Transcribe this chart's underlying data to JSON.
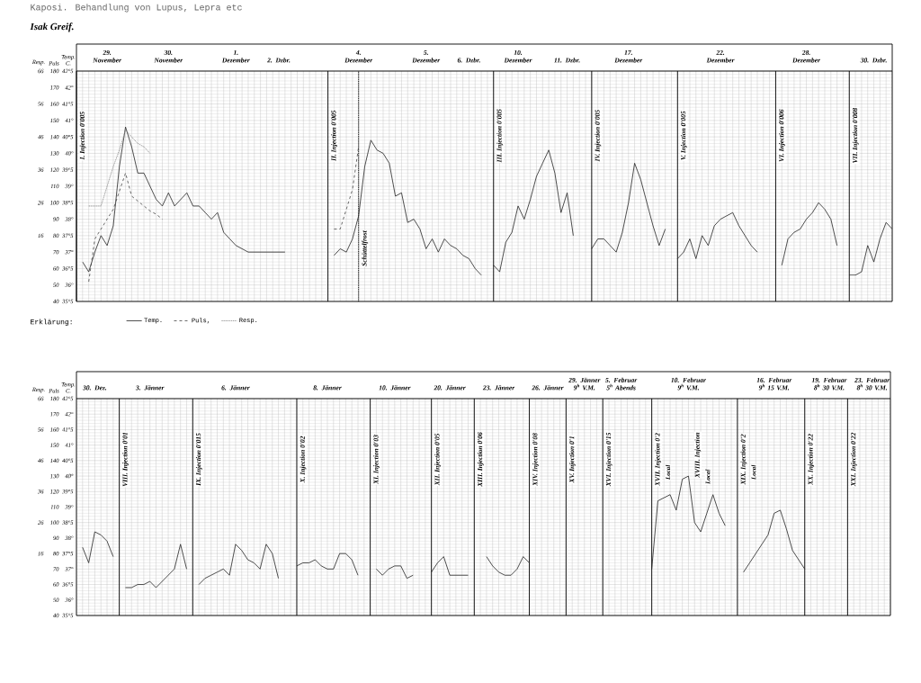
{
  "chart_data": [
    {
      "type": "line",
      "title": "Kaposi. Behandlung von Lupus, Lepra etc",
      "subtitle": "Isak Greif.",
      "ylabel": "Temp. C.",
      "y2label": "Puls",
      "y3label": "Resp.",
      "legend_title": "Erklärung:",
      "legend": "bottom left",
      "grid": true,
      "categories": [
        null,
        null,
        null,
        null,
        null,
        "29. November",
        null,
        null,
        null,
        null,
        null,
        null,
        null,
        null,
        null,
        "30. November",
        null,
        null,
        null,
        null,
        null,
        null,
        null,
        null,
        null,
        null,
        "1. Dezember",
        null,
        null,
        null,
        null,
        null,
        null,
        "2. Dzbr.",
        null,
        null,
        null,
        null,
        null,
        null,
        null,
        null,
        null,
        null,
        null,
        null,
        "4. Dezember",
        null,
        null,
        null,
        null,
        null,
        null,
        null,
        null,
        null,
        null,
        "5. Dezember",
        null,
        null,
        null,
        null,
        null,
        null,
        "6. Dzbr.",
        null,
        null,
        null,
        null,
        null,
        null,
        null,
        "10. Dezember",
        null,
        null,
        null,
        null,
        null,
        null,
        null,
        "11. Dzbr.",
        null,
        null,
        null,
        null,
        null,
        null,
        null,
        null,
        null,
        "17. Dezember",
        null,
        null,
        null,
        null,
        null,
        null,
        null,
        null,
        null,
        null,
        null,
        null,
        null,
        null,
        "22. Dezember",
        null,
        null,
        null,
        null,
        null,
        null,
        null,
        null,
        null,
        null,
        null,
        null,
        null,
        "28. Dezember",
        null,
        null,
        null,
        null,
        null,
        null,
        null,
        null,
        null,
        null,
        "30. Dzbr.",
        null,
        null,
        null
      ],
      "ylim": [
        35.5,
        42.5
      ],
      "yticks": [
        {
          "value": 35.5,
          "label": "35°5"
        },
        {
          "value": 36,
          "label": "36°"
        },
        {
          "value": 36.5,
          "label": "36°5"
        },
        {
          "value": 37,
          "label": "37°"
        },
        {
          "value": 37.5,
          "label": "37°5"
        },
        {
          "value": 38,
          "label": "38°"
        },
        {
          "value": 38.5,
          "label": "38°5"
        },
        {
          "value": 39,
          "label": "39°"
        },
        {
          "value": 39.5,
          "label": "39°5"
        },
        {
          "value": 40,
          "label": "40°"
        },
        {
          "value": 40.5,
          "label": "40°5"
        },
        {
          "value": 41,
          "label": "41°"
        },
        {
          "value": 41.5,
          "label": "41°5"
        },
        {
          "value": 42,
          "label": "42°"
        },
        {
          "value": 42.5,
          "label": "42°5"
        }
      ],
      "y2lim": [
        40,
        180
      ],
      "y2ticks": [
        40,
        50,
        60,
        70,
        80,
        90,
        100,
        110,
        120,
        130,
        140,
        150,
        160,
        170,
        180
      ],
      "y3lim": [
        -4,
        66
      ],
      "y3ticks": [
        16,
        26,
        36,
        46,
        56,
        66
      ],
      "annotations": [
        "I. Injection 0'005",
        "II. Injection 0'005",
        "Schüttelfrost",
        "III. Injection 0'005",
        "IV. Injection 0'005",
        "V. Injection 0'005",
        "VI. Injection 0'006",
        "VII. Injection 0'008"
      ],
      "series": [
        {
          "name": "Temp.",
          "color": "#222222",
          "line_style": "solid",
          "values": [
            null,
            36.7,
            36.4,
            37.0,
            37.5,
            37.2,
            37.8,
            39.6,
            40.8,
            40.2,
            39.4,
            39.4,
            39.0,
            38.6,
            38.4,
            38.8,
            38.4,
            38.6,
            38.8,
            38.4,
            38.4,
            38.2,
            38.0,
            38.2,
            37.6,
            37.4,
            37.2,
            37.1,
            37.0,
            37.0,
            37.0,
            37.0,
            37.0,
            37.0,
            37.0,
            null,
            null,
            null,
            null,
            null,
            null,
            null,
            36.9,
            37.1,
            37.0,
            37.4,
            38.1,
            39.6,
            40.4,
            40.1,
            40.0,
            39.7,
            38.7,
            38.8,
            37.9,
            38.0,
            37.7,
            37.1,
            37.4,
            37.0,
            37.4,
            37.2,
            37.1,
            36.9,
            36.8,
            36.5,
            36.3,
            null,
            36.6,
            36.4,
            37.3,
            37.6,
            38.4,
            38.0,
            38.6,
            39.3,
            39.7,
            40.1,
            39.4,
            38.2,
            38.8,
            37.5,
            null,
            null,
            37.1,
            37.4,
            37.4,
            37.2,
            37.0,
            37.6,
            38.5,
            39.7,
            39.2,
            38.5,
            37.8,
            37.2,
            37.7,
            null,
            36.8,
            37.0,
            37.4,
            36.8,
            37.5,
            37.2,
            37.8,
            38.0,
            38.1,
            38.2,
            37.8,
            37.5,
            37.2,
            37.0,
            null,
            null,
            null,
            36.6,
            37.4,
            37.6,
            37.7,
            38.0,
            38.2,
            38.5,
            38.3,
            38.0,
            37.2,
            null,
            36.3,
            36.3,
            36.4,
            37.2,
            36.7,
            37.4,
            37.9,
            37.7
          ]
        },
        {
          "name": "Puls,",
          "color": "#444444",
          "line_style": "dashed",
          "axis": "y2",
          "values": [
            null,
            null,
            52,
            78,
            84,
            90,
            96,
            107,
            118,
            104,
            101,
            98,
            95,
            93,
            90,
            null,
            null,
            null,
            null,
            null,
            null,
            null,
            null,
            null,
            null,
            null,
            null,
            null,
            null,
            null,
            null,
            null,
            null,
            null,
            null,
            null,
            null,
            null,
            null,
            null,
            null,
            null,
            84,
            84,
            96,
            108,
            134,
            null,
            null,
            null,
            null,
            null,
            null,
            null,
            null,
            null,
            null,
            null,
            null,
            null,
            null,
            null,
            null,
            null,
            null,
            null,
            null,
            null,
            null,
            null,
            null,
            null,
            null,
            null,
            null,
            null,
            null,
            null,
            null,
            null,
            null,
            null,
            null,
            null,
            null,
            null,
            null,
            null,
            null,
            null,
            null,
            null,
            null,
            null,
            null,
            null,
            null,
            null,
            null,
            null,
            null,
            null,
            null,
            null,
            null,
            null,
            null,
            null,
            null,
            null,
            null,
            null,
            null,
            null,
            null,
            null,
            null,
            null,
            null,
            null,
            null,
            null,
            null,
            null,
            null,
            null,
            null,
            null,
            null,
            null,
            null,
            null,
            null,
            null
          ]
        },
        {
          "name": "Resp.",
          "color": "#888888",
          "line_style": "dotted",
          "axis": "y3",
          "values": [
            null,
            null,
            25,
            25,
            25,
            31,
            37,
            42,
            48,
            46,
            44,
            43,
            41,
            null,
            null,
            null,
            null,
            null,
            null,
            null,
            null,
            null,
            null,
            null,
            null,
            null,
            null,
            null,
            null,
            null,
            null,
            null,
            null,
            null,
            null,
            null,
            null,
            null,
            null,
            null,
            null,
            null,
            null,
            null,
            null,
            null,
            null,
            null,
            null,
            null,
            null,
            null,
            null,
            null,
            null,
            null,
            null,
            null,
            null,
            null,
            null,
            null,
            null,
            null,
            null,
            null,
            null,
            null,
            null,
            null,
            null,
            null,
            null,
            null,
            null,
            null,
            null,
            null,
            null,
            null,
            null,
            null,
            null,
            null,
            null,
            null,
            null,
            null,
            null,
            null,
            null,
            null,
            null,
            null,
            null,
            null,
            null,
            null,
            null,
            null,
            null,
            null,
            null,
            null,
            null,
            null,
            null,
            null,
            null,
            null,
            null,
            null,
            null,
            null,
            null,
            null,
            null,
            null,
            null,
            null,
            null,
            null,
            null,
            null,
            null,
            null,
            null,
            null,
            null,
            null,
            null,
            null,
            null,
            null
          ]
        }
      ]
    },
    {
      "type": "line",
      "ylabel": "Temp. C.",
      "y2label": "Puls",
      "y3label": "Resp.",
      "grid": true,
      "categories": [
        null,
        null,
        null,
        "30. Dez.",
        null,
        null,
        null,
        null,
        null,
        null,
        null,
        null,
        "3. Jänner",
        null,
        null,
        null,
        null,
        null,
        null,
        null,
        null,
        null,
        null,
        null,
        null,
        null,
        "6. Jänner",
        null,
        null,
        null,
        null,
        null,
        null,
        null,
        null,
        null,
        null,
        null,
        null,
        null,
        null,
        "8. Jänner",
        null,
        null,
        null,
        null,
        null,
        null,
        null,
        null,
        null,
        null,
        "10. Jänner",
        null,
        null,
        null,
        null,
        null,
        null,
        null,
        null,
        "20. Jänner",
        null,
        null,
        null,
        null,
        null,
        null,
        null,
        "23. Jänner",
        null,
        null,
        null,
        null,
        null,
        null,
        null,
        "26. Jänner",
        null,
        null,
        null,
        null,
        null,
        "29. Jänner 9$^{h}$ V.M.",
        null,
        null,
        null,
        null,
        null,
        "5. Februar 5$^{h}$ Abends",
        null,
        null,
        null,
        null,
        null,
        null,
        null,
        null,
        null,
        null,
        "10. Februar 9$^{h}$ V.M.",
        null,
        null,
        null,
        null,
        null,
        null,
        null,
        null,
        null,
        null,
        null,
        null,
        null,
        "16. Februar 9$^{h}$ 15 V.M.",
        null,
        null,
        null,
        null,
        null,
        null,
        null,
        null,
        "19. Februar 8$^{h}$ 30 V.M.",
        null,
        null,
        null,
        null,
        null,
        null,
        "23. Februar 8$^{h}$ 30 V.M.",
        null,
        null,
        null
      ],
      "ylim": [
        35.5,
        42.5
      ],
      "yticks": [
        {
          "value": 35.5,
          "label": "35°5"
        },
        {
          "value": 36,
          "label": "36°"
        },
        {
          "value": 36.5,
          "label": "36°5"
        },
        {
          "value": 37,
          "label": "37°"
        },
        {
          "value": 37.5,
          "label": "37°5"
        },
        {
          "value": 38,
          "label": "38°"
        },
        {
          "value": 38.5,
          "label": "38°5"
        },
        {
          "value": 39,
          "label": "39°"
        },
        {
          "value": 39.5,
          "label": "39°5"
        },
        {
          "value": 40,
          "label": "40°"
        },
        {
          "value": 40.5,
          "label": "40°5"
        },
        {
          "value": 41,
          "label": "41°"
        },
        {
          "value": 41.5,
          "label": "41°5"
        },
        {
          "value": 42,
          "label": "42°"
        },
        {
          "value": 42.5,
          "label": "42°5"
        }
      ],
      "y2lim": [
        40,
        180
      ],
      "y2ticks": [
        40,
        50,
        60,
        70,
        80,
        90,
        100,
        110,
        120,
        130,
        140,
        150,
        160,
        170,
        180
      ],
      "y3lim": [
        -4,
        66
      ],
      "y3ticks": [
        16,
        26,
        36,
        46,
        56,
        66
      ],
      "annotations": [
        "VIII. Injection 0'01",
        "IX. Injection 0'015",
        "X. Injection 0'02",
        "XI. Injection 0'03",
        "XII. Injection 0'05",
        "XIII. Injection 0'06",
        "XIV. Injection 0'08",
        "XV. Injection 0'1",
        "XVI. Injection 0'15",
        "XVII. Injection 0'2",
        "Local",
        "XVIII. Injection",
        "Local",
        "XIX. Injection 0'2",
        "Local",
        "XX. Injection 0'22",
        "XXI. Injection 0'22"
      ],
      "series": [
        {
          "color": "#222222",
          "line_style": "solid",
          "values": [
            null,
            37.7,
            37.2,
            38.2,
            38.1,
            37.9,
            37.4,
            null,
            36.4,
            36.4,
            36.5,
            36.5,
            36.6,
            36.4,
            36.6,
            36.8,
            37.0,
            37.8,
            37.0,
            null,
            36.5,
            36.7,
            36.8,
            36.9,
            37.0,
            36.8,
            37.8,
            37.6,
            37.3,
            37.2,
            37.0,
            37.8,
            37.5,
            36.7,
            null,
            null,
            37.1,
            37.2,
            37.2,
            37.3,
            37.1,
            37.0,
            37.0,
            37.5,
            37.5,
            37.3,
            36.8,
            null,
            null,
            37.0,
            36.8,
            37.0,
            37.1,
            37.1,
            36.7,
            36.8,
            null,
            null,
            36.9,
            37.2,
            37.4,
            36.8,
            36.8,
            36.8,
            36.8,
            null,
            null,
            37.4,
            37.1,
            36.9,
            36.8,
            36.8,
            37.0,
            37.4,
            37.2,
            null,
            null,
            null,
            null,
            null,
            null,
            null,
            null,
            null,
            null,
            null,
            null,
            null,
            null,
            null,
            null,
            null,
            null,
            null,
            37.0,
            39.2,
            39.3,
            39.4,
            38.9,
            39.9,
            40.0,
            38.5,
            38.2,
            38.8,
            39.4,
            38.8,
            38.4,
            null,
            null,
            36.9,
            37.2,
            37.5,
            37.8,
            38.1,
            38.8,
            38.9,
            38.3,
            37.6,
            37.3,
            37.0,
            null,
            null,
            null,
            null,
            null,
            null,
            null,
            null,
            null,
            null,
            null,
            null,
            null,
            null
          ]
        }
      ]
    }
  ]
}
